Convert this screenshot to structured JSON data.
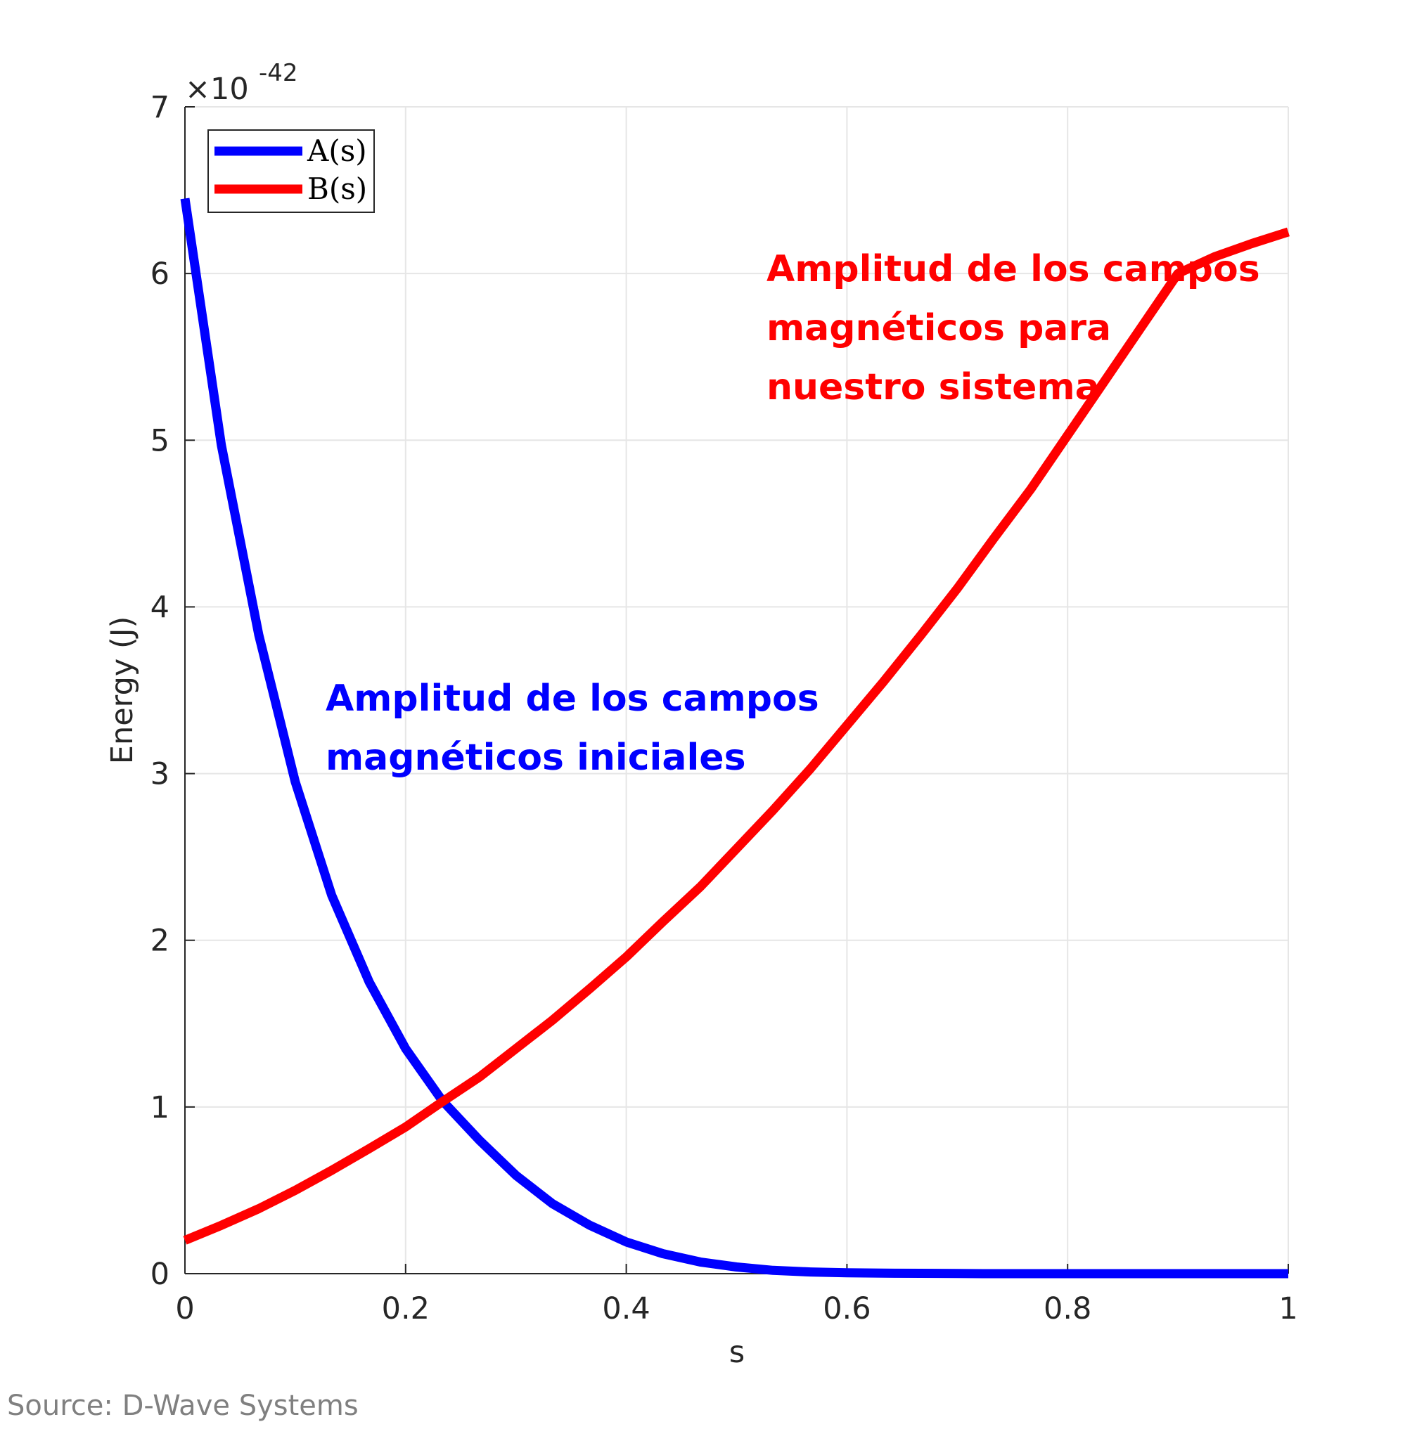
{
  "chart_data": {
    "type": "line",
    "xlabel": "s",
    "ylabel": "Energy (J)",
    "xlim": [
      0,
      1
    ],
    "ylim": [
      0,
      7
    ],
    "xticks": [
      "0",
      "0.2",
      "0.4",
      "0.6",
      "0.8",
      "1"
    ],
    "yticks": [
      "0",
      "1",
      "2",
      "3",
      "4",
      "5",
      "6",
      "7"
    ],
    "y_exponent": {
      "base": "×10",
      "power": "-42"
    },
    "grid": true,
    "legend_position": "top-left",
    "x": [
      0,
      0.033,
      0.067,
      0.1,
      0.133,
      0.167,
      0.2,
      0.233,
      0.267,
      0.3,
      0.333,
      0.367,
      0.4,
      0.433,
      0.467,
      0.5,
      0.533,
      0.567,
      0.6,
      0.633,
      0.667,
      0.7,
      0.733,
      0.767,
      0.8,
      0.833,
      0.867,
      0.9,
      0.933,
      0.967,
      1.0
    ],
    "series": [
      {
        "name": "A(s)",
        "color": "#0000ff",
        "values": [
          6.45,
          4.97,
          3.83,
          2.95,
          2.27,
          1.75,
          1.35,
          1.04,
          0.8,
          0.59,
          0.42,
          0.29,
          0.19,
          0.12,
          0.07,
          0.04,
          0.02,
          0.01,
          0.005,
          0.003,
          0.002,
          0.001,
          0.0,
          0.0,
          0.0,
          0.0,
          0.0,
          0.0,
          0.0,
          0.0,
          0.0
        ]
      },
      {
        "name": "B(s)",
        "color": "#ff0000",
        "values": [
          0.2,
          0.29,
          0.39,
          0.5,
          0.62,
          0.75,
          0.88,
          1.03,
          1.18,
          1.35,
          1.52,
          1.71,
          1.9,
          2.11,
          2.32,
          2.55,
          2.78,
          3.03,
          3.29,
          3.55,
          3.83,
          4.11,
          4.41,
          4.71,
          5.03,
          5.35,
          5.68,
          6.0,
          6.1,
          6.18,
          6.25
        ]
      }
    ],
    "annotations": [
      {
        "lines": [
          "Amplitud de los campos",
          "magnéticos iniciales"
        ],
        "color": "#0000ff",
        "x": 0.128,
        "y": 3.45
      },
      {
        "lines": [
          "Amplitud de los campos",
          "magnéticos para",
          "nuestro sistema"
        ],
        "color": "#ff0000",
        "x": 0.527,
        "y": 6.02
      }
    ]
  },
  "source": "Source: D-Wave Systems"
}
